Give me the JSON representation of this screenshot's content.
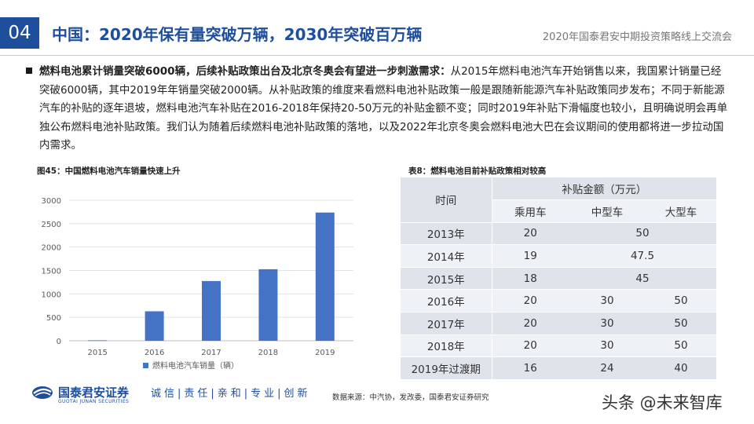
{
  "header": {
    "section_number": "04",
    "title": "中国：2020年保有量突破万辆，2030年突破百万辆",
    "conference": "2020年国泰君安中期投资策略线上交流会"
  },
  "body": {
    "lead_bold": "燃料电池累计销量突破6000辆，后续补贴政策出台及北京冬奥会有望进一步刺激需求：",
    "text": "从2015年燃料电池汽车开始销售以来，我国累计销量已经突破6000辆，其中2019年年销量突破2000辆。从补贴政策的维度来看燃料电池补贴政策一般是跟随新能源汽车补贴政策同步发布；不同于新能源汽车的补贴的逐年退坡，燃料电池汽车补贴在2016-2018年保持20-50万元的补贴金额不变；同时2019年补贴下滑幅度也较小，且明确说明会再单独公布燃料电池补贴政策。我们认为随着后续燃料电池补贴政策的落地，以及2022年北京冬奥会燃料电池大巴在会议期间的使用都将进一步拉动国内需求。"
  },
  "figure": {
    "title": "图45：中国燃料电池汽车销量快速上升"
  },
  "chart_data": {
    "type": "bar",
    "title": "图45：中国燃料电池汽车销量快速上升",
    "categories": [
      "2015",
      "2016",
      "2017",
      "2018",
      "2019"
    ],
    "series": [
      {
        "name": "燃料电池汽车销量（辆）",
        "values": [
          10,
          629,
          1275,
          1527,
          2737
        ]
      }
    ],
    "y_ticks": [
      "0",
      "500",
      "1000",
      "1500",
      "2000",
      "2500",
      "3000"
    ],
    "ylim": [
      0,
      3000
    ],
    "grid": true,
    "legend_position": "bottom",
    "bar_color": "#4472c4"
  },
  "table": {
    "title": "表8：燃料电池目前补贴政策相对较高",
    "header_time": "时间",
    "header_group": "补贴金额（万元）",
    "col_passenger": "乘用车",
    "col_medium": "中型车",
    "col_large": "大型车",
    "rows": [
      {
        "year": "2013年",
        "passenger": "20",
        "merged": "50"
      },
      {
        "year": "2014年",
        "passenger": "19",
        "merged": "47.5"
      },
      {
        "year": "2015年",
        "passenger": "18",
        "merged": "45"
      },
      {
        "year": "2016年",
        "passenger": "20",
        "medium": "30",
        "large": "50"
      },
      {
        "year": "2017年",
        "passenger": "20",
        "medium": "30",
        "large": "50"
      },
      {
        "year": "2018年",
        "passenger": "20",
        "medium": "30",
        "large": "50"
      },
      {
        "year": "2019年过渡期",
        "passenger": "16",
        "medium": "24",
        "large": "40"
      }
    ]
  },
  "footer": {
    "logo_cn": "国泰君安证券",
    "logo_en": "GUOTAI JUNAN SECURITIES",
    "slogan": "诚信|责任|亲和|专业|创新",
    "source": "数据来源：中汽协，发改委，国泰君安证券研究",
    "watermark": "头条 @未来智库"
  }
}
